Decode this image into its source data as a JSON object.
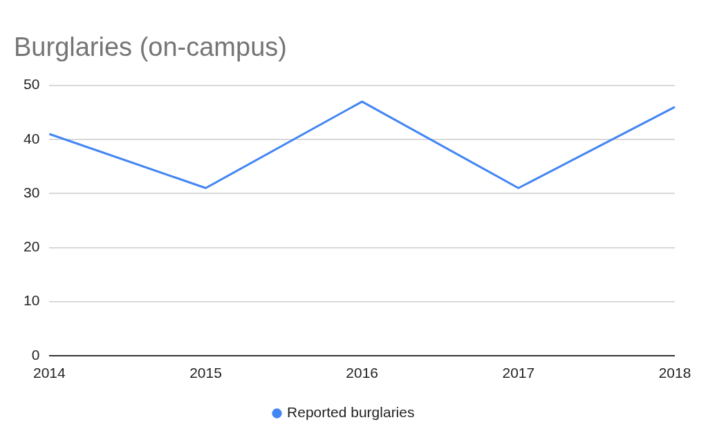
{
  "chart_data": {
    "type": "line",
    "title": "Burglaries (on-campus)",
    "categories": [
      "2014",
      "2015",
      "2016",
      "2017",
      "2018"
    ],
    "series": [
      {
        "name": "Reported burglaries",
        "color": "#4285f4",
        "values": [
          41,
          31,
          47,
          31,
          46
        ]
      }
    ],
    "ylim": [
      0,
      50
    ],
    "yticks": [
      0,
      10,
      20,
      30,
      40,
      50
    ],
    "grid": "y",
    "legend": "bottom",
    "marker": "none"
  }
}
